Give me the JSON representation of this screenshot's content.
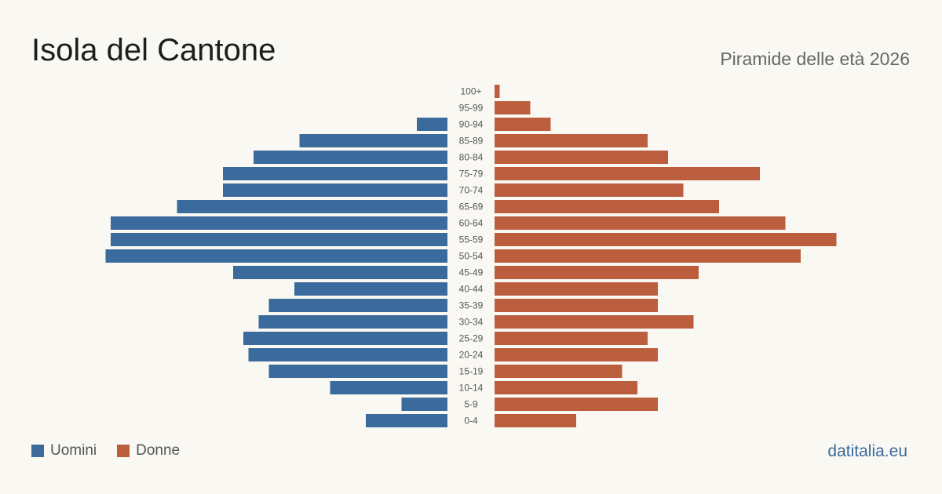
{
  "header": {
    "title": "Isola del Cantone",
    "subtitle": "Piramide delle età 2026"
  },
  "legend": {
    "items": [
      {
        "label": "Uomini",
        "color": "#3a6b9c"
      },
      {
        "label": "Donne",
        "color": "#bb5e3d"
      }
    ]
  },
  "footer": {
    "source": "datitalia.eu"
  },
  "chart_data": {
    "type": "bar",
    "orientation": "horizontal",
    "layout": "population-pyramid",
    "categories": [
      "100+",
      "95-99",
      "90-94",
      "85-89",
      "80-84",
      "75-79",
      "70-74",
      "65-69",
      "60-64",
      "55-59",
      "50-54",
      "45-49",
      "40-44",
      "35-39",
      "30-34",
      "25-29",
      "20-24",
      "15-19",
      "10-14",
      "5-9",
      "0-4"
    ],
    "series": [
      {
        "name": "Uomini",
        "color": "#3a6b9c",
        "values": [
          0,
          0,
          6,
          29,
          38,
          44,
          44,
          53,
          66,
          66,
          67,
          42,
          30,
          35,
          37,
          40,
          39,
          35,
          23,
          9,
          16
        ]
      },
      {
        "name": "Donne",
        "color": "#bb5e3d",
        "values": [
          1,
          7,
          11,
          30,
          34,
          52,
          37,
          44,
          57,
          67,
          60,
          40,
          32,
          32,
          39,
          30,
          32,
          25,
          28,
          32,
          16
        ]
      }
    ],
    "xlim": [
      0,
      70
    ],
    "grid": false,
    "legend_position": "bottom-left"
  }
}
